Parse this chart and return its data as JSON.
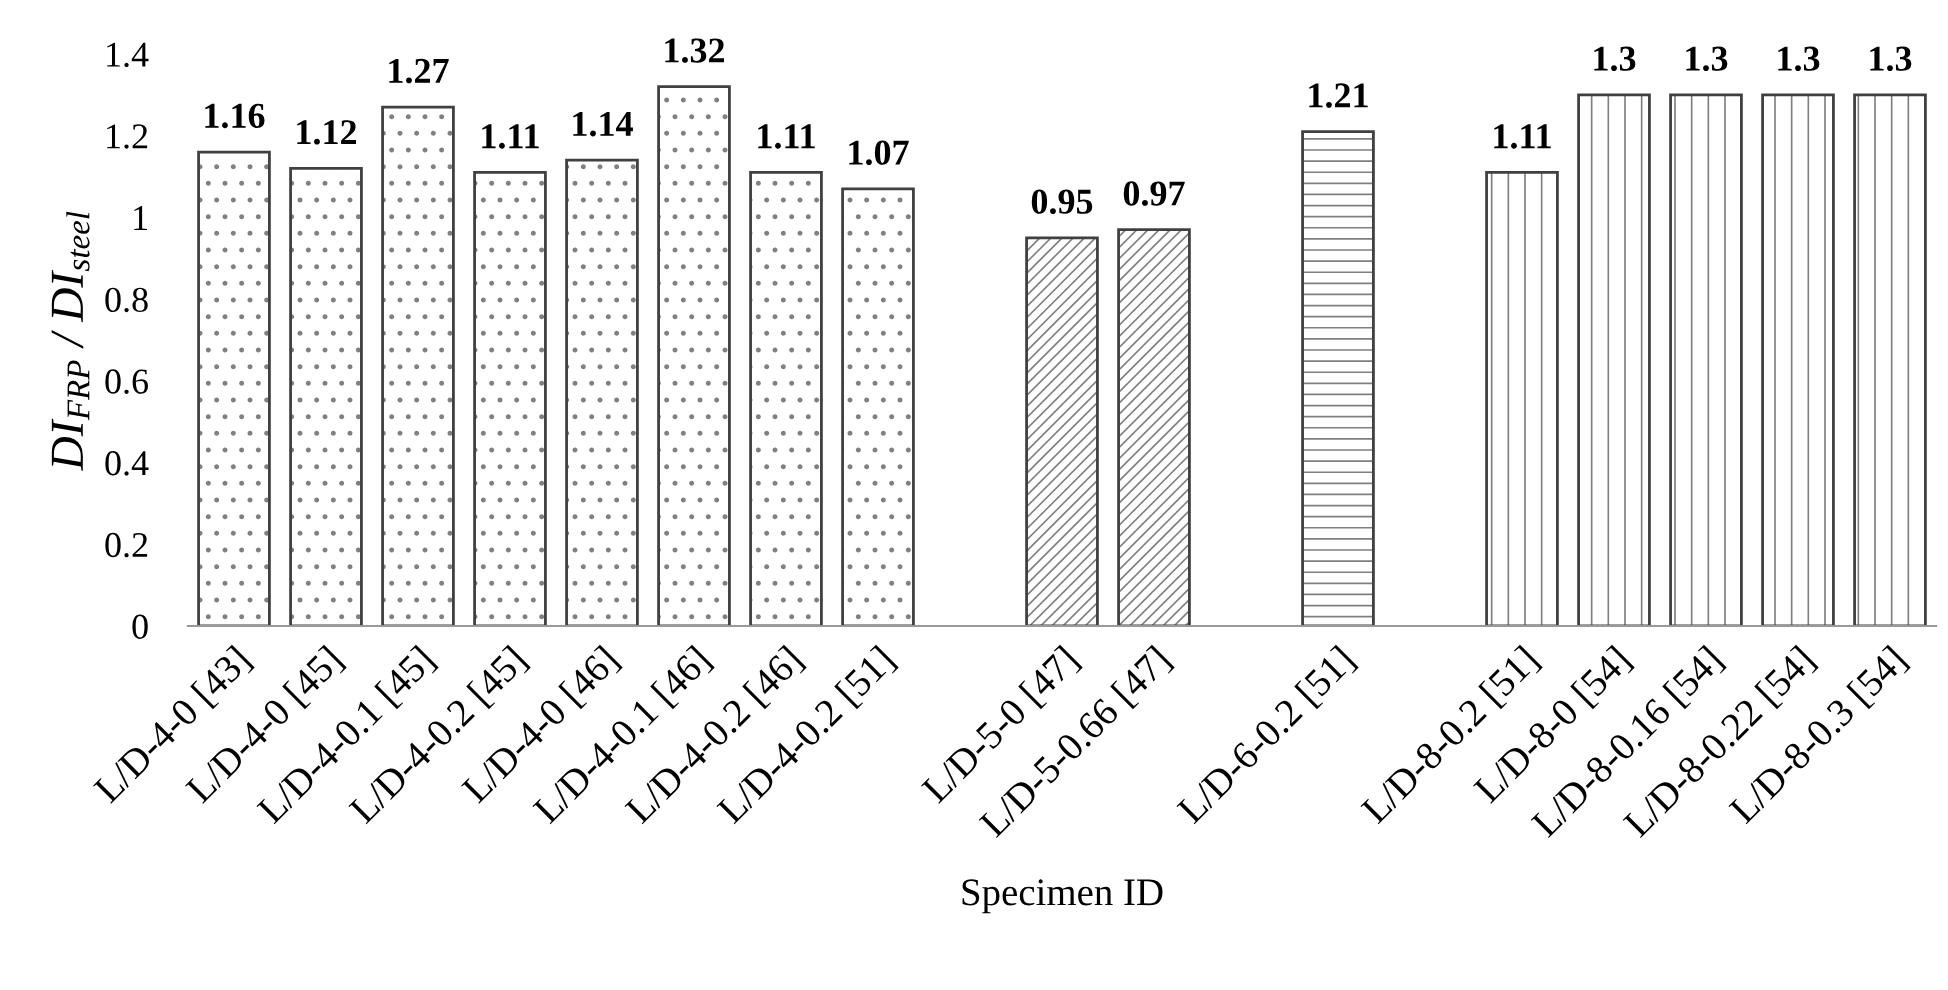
{
  "chart_data": {
    "type": "bar",
    "xlabel": "Specimen ID",
    "ylabel": "DI$_{FRP}$ / DI$_{steel}$",
    "categories": [
      "L/D-4-0 [43]",
      "L/D-4-0 [45]",
      "L/D-4-0.1 [45]",
      "L/D-4-0.2 [45]",
      "L/D-4-0 [46]",
      "L/D-4-0.1 [46]",
      "L/D-4-0.2 [46]",
      "L/D-4-0.2 [51]",
      null,
      "L/D-5-0 [47]",
      "L/D-5-0.66 [47]",
      null,
      "L/D-6-0.2 [51]",
      null,
      "L/D-8-0.2 [51]",
      "L/D-8-0 [54]",
      "L/D-8-0.16 [54]",
      "L/D-8-0.22 [54]",
      "L/D-8-0.3 [54]"
    ],
    "series": [
      {
        "color": "#404040",
        "values": [
          1.16,
          1.12,
          1.27,
          1.11,
          1.14,
          1.32,
          1.11,
          1.07,
          null,
          null,
          null,
          null,
          null,
          null,
          null,
          null,
          null,
          null,
          null
        ]
      },
      {
        "color": "#404040",
        "values": [
          null,
          null,
          null,
          null,
          null,
          null,
          null,
          null,
          null,
          0.95,
          0.97,
          null,
          null,
          null,
          null,
          null,
          null,
          null,
          null
        ]
      },
      {
        "color": "#404040",
        "values": [
          null,
          null,
          null,
          null,
          null,
          null,
          null,
          null,
          null,
          null,
          null,
          null,
          1.21,
          null,
          null,
          null,
          null,
          null,
          null
        ]
      },
      {
        "color": "#404040",
        "values": [
          null,
          null,
          null,
          null,
          null,
          null,
          null,
          null,
          null,
          null,
          null,
          null,
          null,
          null,
          1.11,
          1.3,
          1.3,
          1.3,
          1.3
        ]
      }
    ],
    "ylim": [
      0,
      1.4
    ],
    "yticks": [
      0,
      0.2,
      0.4,
      0.6,
      0.8,
      1,
      1.2,
      1.4
    ],
    "data_labels": true,
    "grid": false,
    "legend": false
  }
}
